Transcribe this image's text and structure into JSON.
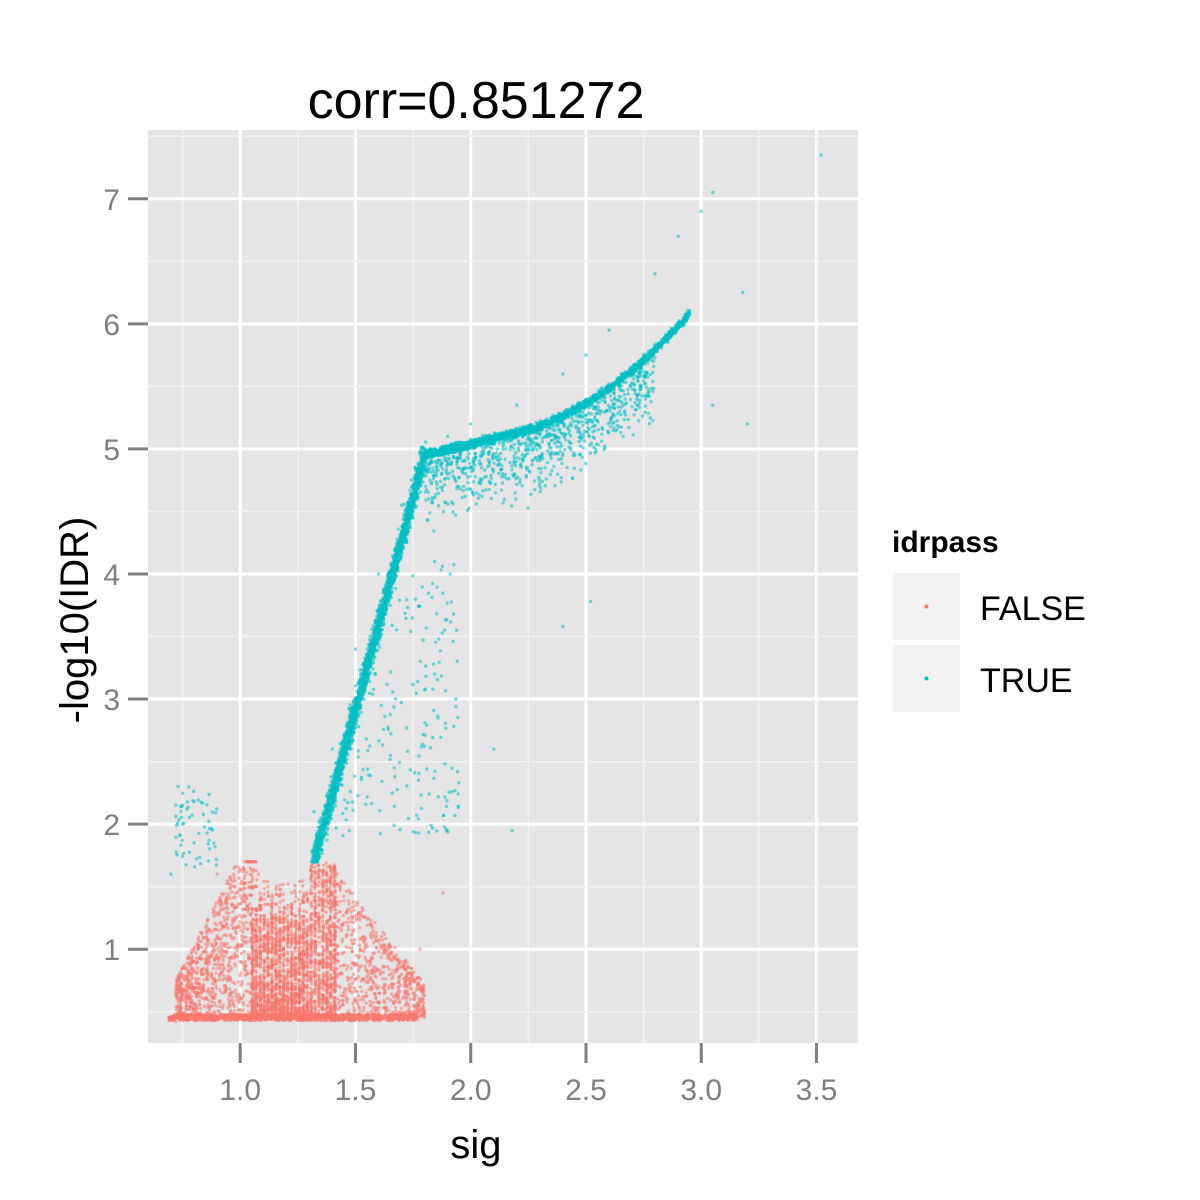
{
  "chart_data": {
    "type": "scatter",
    "title": "corr=0.851272",
    "xlabel": "sig",
    "ylabel": "-log10(IDR)",
    "xlim": [
      0.6,
      3.68
    ],
    "ylim": [
      0.25,
      7.55
    ],
    "x_ticks": [
      1.0,
      1.5,
      2.0,
      2.5,
      3.0,
      3.5
    ],
    "x_tick_labels": [
      "1.0",
      "1.5",
      "2.0",
      "2.5",
      "3.0",
      "3.5"
    ],
    "y_ticks": [
      1,
      2,
      3,
      4,
      5,
      6,
      7
    ],
    "y_tick_labels": [
      "1",
      "2",
      "3",
      "4",
      "5",
      "6",
      "7"
    ],
    "grid": true,
    "legend": {
      "title": "idrpass",
      "position": "right",
      "entries": [
        {
          "label": "FALSE",
          "color": "#F8766D"
        },
        {
          "label": "TRUE",
          "color": "#00BFC4"
        }
      ]
    },
    "series": [
      {
        "name": "FALSE",
        "color": "#F8766D",
        "points_sample": [
          [
            0.72,
            0.42
          ],
          [
            0.85,
            0.44
          ],
          [
            0.9,
            1.6
          ],
          [
            0.95,
            0.6
          ],
          [
            1.0,
            0.9
          ],
          [
            1.05,
            1.2
          ],
          [
            1.08,
            1.6
          ],
          [
            1.12,
            1.5
          ],
          [
            1.18,
            0.5
          ],
          [
            1.22,
            1.3
          ],
          [
            1.28,
            0.7
          ],
          [
            1.32,
            1.69
          ],
          [
            1.36,
            1.1
          ],
          [
            1.42,
            1.6
          ],
          [
            1.48,
            1.3
          ],
          [
            1.55,
            0.9
          ],
          [
            1.6,
            0.5
          ],
          [
            1.7,
            0.8
          ],
          [
            1.78,
            1.0
          ],
          [
            1.88,
            1.45
          ]
        ]
      },
      {
        "name": "TRUE",
        "color": "#00BFC4",
        "points_sample": [
          [
            0.73,
            2.3
          ],
          [
            0.75,
            2.0
          ],
          [
            0.8,
            1.85
          ],
          [
            0.7,
            1.6
          ],
          [
            1.32,
            2.1
          ],
          [
            1.4,
            2.6
          ],
          [
            1.5,
            3.4
          ],
          [
            1.6,
            4.0
          ],
          [
            1.7,
            4.55
          ],
          [
            1.8,
            4.95
          ],
          [
            1.9,
            5.1
          ],
          [
            2.0,
            5.2
          ],
          [
            2.2,
            5.35
          ],
          [
            2.4,
            5.6
          ],
          [
            2.5,
            5.75
          ],
          [
            2.6,
            5.95
          ],
          [
            2.8,
            6.4
          ],
          [
            2.9,
            6.7
          ],
          [
            3.0,
            6.9
          ],
          [
            3.05,
            7.05
          ],
          [
            3.52,
            7.35
          ],
          [
            3.05,
            5.35
          ],
          [
            3.2,
            5.2
          ],
          [
            2.52,
            3.78
          ],
          [
            2.4,
            3.58
          ],
          [
            2.18,
            1.95
          ],
          [
            2.1,
            2.6
          ],
          [
            3.18,
            6.25
          ]
        ]
      }
    ]
  }
}
